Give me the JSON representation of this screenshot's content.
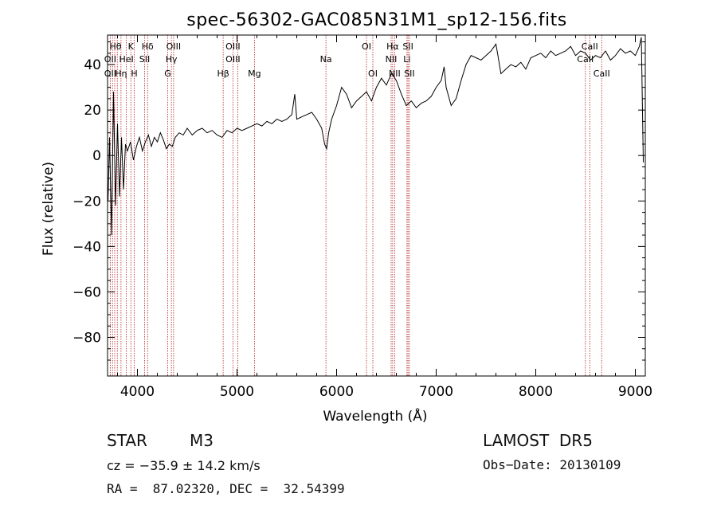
{
  "chart_data": {
    "type": "line",
    "title": "spec-56302-GAC085N31M1_sp12-156.fits",
    "xlabel": "Wavelength (Å)",
    "ylabel": "Flux (relative)",
    "xlim": [
      3700,
      9100
    ],
    "ylim": [
      -97,
      53
    ],
    "x_ticks": [
      4000,
      5000,
      6000,
      7000,
      8000,
      9000
    ],
    "y_ticks": [
      -80,
      -60,
      -40,
      -20,
      0,
      20,
      40
    ],
    "grid": false,
    "line_color": "#000000",
    "marker_color": "#b22222",
    "series": [
      {
        "x": [
          3705,
          3720,
          3740,
          3760,
          3780,
          3800,
          3820,
          3840,
          3860,
          3880,
          3900,
          3930,
          3960,
          3990,
          4020,
          4050,
          4080,
          4110,
          4140,
          4170,
          4200,
          4230,
          4260,
          4290,
          4320,
          4350,
          4380,
          4420,
          4460,
          4500,
          4550,
          4600,
          4650,
          4700,
          4750,
          4800,
          4850,
          4900,
          4950,
          5000,
          5050,
          5100,
          5150,
          5200,
          5250,
          5300,
          5350,
          5400,
          5450,
          5500,
          5550,
          5580,
          5600,
          5650,
          5700,
          5750,
          5800,
          5850,
          5880,
          5900,
          5920,
          5950,
          6000,
          6050,
          6100,
          6150,
          6200,
          6250,
          6300,
          6350,
          6400,
          6450,
          6500,
          6550,
          6570,
          6600,
          6650,
          6700,
          6750,
          6800,
          6850,
          6900,
          6950,
          7000,
          7050,
          7080,
          7100,
          7150,
          7200,
          7250,
          7300,
          7350,
          7400,
          7450,
          7500,
          7550,
          7600,
          7620,
          7650,
          7700,
          7750,
          7800,
          7850,
          7900,
          7950,
          8000,
          8050,
          8100,
          8150,
          8200,
          8250,
          8300,
          8350,
          8400,
          8450,
          8500,
          8550,
          8600,
          8650,
          8700,
          8750,
          8800,
          8850,
          8900,
          8950,
          9000,
          9040,
          9060,
          9080
        ],
        "y": [
          -20,
          8,
          -35,
          28,
          -22,
          14,
          -18,
          8,
          -15,
          5,
          2,
          6,
          -2,
          4,
          8,
          2,
          6,
          9,
          4,
          8,
          6,
          10,
          7,
          3,
          5,
          4,
          8,
          10,
          9,
          12,
          9,
          11,
          12,
          10,
          11,
          9,
          8,
          11,
          10,
          12,
          11,
          12,
          13,
          14,
          13,
          15,
          14,
          16,
          15,
          16,
          18,
          27,
          16,
          17,
          18,
          19,
          16,
          12,
          5,
          3,
          10,
          16,
          22,
          30,
          27,
          21,
          24,
          26,
          28,
          24,
          30,
          34,
          31,
          36,
          35,
          33,
          27,
          22,
          24,
          21,
          23,
          24,
          26,
          30,
          33,
          39,
          30,
          22,
          25,
          33,
          40,
          44,
          43,
          42,
          44,
          46,
          49,
          44,
          36,
          38,
          40,
          39,
          41,
          38,
          43,
          44,
          45,
          43,
          46,
          44,
          45,
          46,
          48,
          44,
          46,
          45,
          42,
          44,
          43,
          46,
          42,
          44,
          47,
          45,
          46,
          44,
          48,
          52,
          -3
        ]
      }
    ],
    "annotation_lines": {
      "wavelengths": [
        3727,
        3750,
        3772,
        3798,
        3835,
        3889,
        3934,
        3968,
        4072,
        4102,
        4304,
        4341,
        4363,
        4861,
        4959,
        5007,
        5175,
        5893,
        6300,
        6364,
        6548,
        6563,
        6583,
        6707,
        6717,
        6731,
        8498,
        8542,
        8662
      ],
      "labels": [
        {
          "text": "Hθ",
          "x": 3780,
          "row": 1
        },
        {
          "text": "K",
          "x": 3934,
          "row": 1
        },
        {
          "text": "Hδ",
          "x": 4102,
          "row": 1
        },
        {
          "text": "OIII",
          "x": 4363,
          "row": 1
        },
        {
          "text": "OIII",
          "x": 4959,
          "row": 1
        },
        {
          "text": "OI",
          "x": 6300,
          "row": 1
        },
        {
          "text": "Hα",
          "x": 6563,
          "row": 1
        },
        {
          "text": "SII",
          "x": 6717,
          "row": 1
        },
        {
          "text": "CaII",
          "x": 8542,
          "row": 1
        },
        {
          "text": "OII",
          "x": 3727,
          "row": 2
        },
        {
          "text": "HeI",
          "x": 3889,
          "row": 2
        },
        {
          "text": "SII",
          "x": 4072,
          "row": 2
        },
        {
          "text": "Hγ",
          "x": 4341,
          "row": 2
        },
        {
          "text": "OIII",
          "x": 4959,
          "row": 2
        },
        {
          "text": "Na",
          "x": 5893,
          "row": 2
        },
        {
          "text": "NII",
          "x": 6548,
          "row": 2
        },
        {
          "text": "Li",
          "x": 6707,
          "row": 2
        },
        {
          "text": "CaII",
          "x": 8498,
          "row": 2
        },
        {
          "text": "OII",
          "x": 3727,
          "row": 3
        },
        {
          "text": "Hη",
          "x": 3835,
          "row": 3
        },
        {
          "text": "H",
          "x": 3968,
          "row": 3
        },
        {
          "text": "G",
          "x": 4304,
          "row": 3
        },
        {
          "text": "Hβ",
          "x": 4861,
          "row": 3
        },
        {
          "text": "Mg",
          "x": 5175,
          "row": 3
        },
        {
          "text": "OI",
          "x": 6364,
          "row": 3
        },
        {
          "text": "NII",
          "x": 6583,
          "row": 3
        },
        {
          "text": "SII",
          "x": 6731,
          "row": 3
        },
        {
          "text": "CaII",
          "x": 8662,
          "row": 3
        }
      ]
    }
  },
  "info": {
    "object_class": "STAR",
    "subclass": "M3",
    "survey": "LAMOST  DR5",
    "velocity": "cz = −35.9 ± 14.2 km/s",
    "obs_date": "Obs−Date: 20130109",
    "coords": "RA =  87.02320, DEC =  32.54399"
  }
}
